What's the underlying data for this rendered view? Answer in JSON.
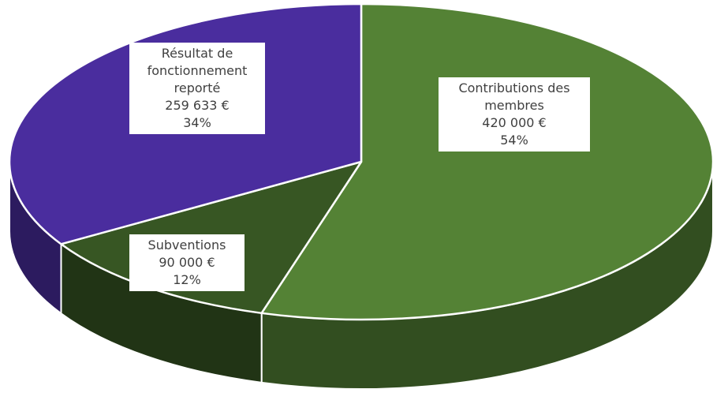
{
  "chart_data": {
    "type": "pie",
    "categories": [
      "Contributions des membres",
      "Subventions",
      "Résultat de fonctionnement reporté"
    ],
    "values": [
      420000,
      90000,
      259633
    ],
    "value_labels": [
      "420 000 €",
      "90 000 €",
      "259 633 €"
    ],
    "percentages": [
      54,
      12,
      34
    ],
    "percentage_labels": [
      "54%",
      "12%",
      "34%"
    ],
    "colors": [
      "#548235",
      "#375623",
      "#4a2d9e"
    ]
  }
}
